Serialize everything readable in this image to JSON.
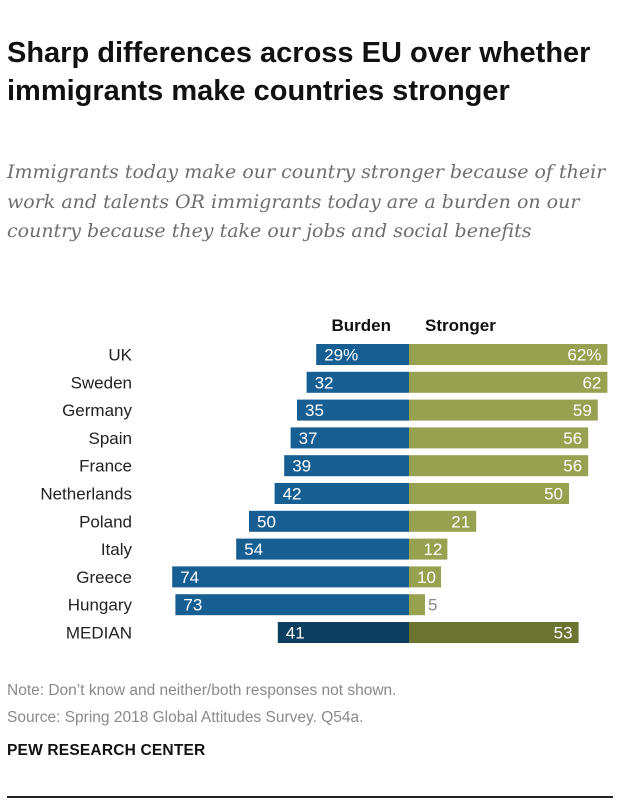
{
  "header": {
    "title": "Sharp differences across EU over whether immigrants make countries stronger",
    "subtitle": "Immigrants today make our country stronger because of their work and talents OR immigrants today are a burden on our country because they take our jobs and social benefits"
  },
  "footer": {
    "note": "Note: Don’t know and neither/both responses not shown.",
    "source": "Source: Spring 2018 Global Attitudes Survey. Q54a.",
    "brand": "PEW RESEARCH CENTER"
  },
  "colors": {
    "burden": "#175f93",
    "stronger": "#97a14f",
    "burden_median": "#0c3f5f",
    "stronger_median": "#6b7430"
  },
  "chart_data": {
    "type": "bar",
    "orientation": "horizontal-diverging",
    "categories": [
      "UK",
      "Sweden",
      "Germany",
      "Spain",
      "France",
      "Netherlands",
      "Poland",
      "Italy",
      "Greece",
      "Hungary",
      "MEDIAN"
    ],
    "series": [
      {
        "name": "Burden",
        "values": [
          29,
          32,
          35,
          37,
          39,
          42,
          50,
          54,
          74,
          73,
          41
        ]
      },
      {
        "name": "Stronger",
        "values": [
          62,
          62,
          59,
          56,
          56,
          50,
          21,
          12,
          10,
          5,
          53
        ]
      }
    ],
    "first_row_suffix": "%",
    "unit": "percent"
  }
}
